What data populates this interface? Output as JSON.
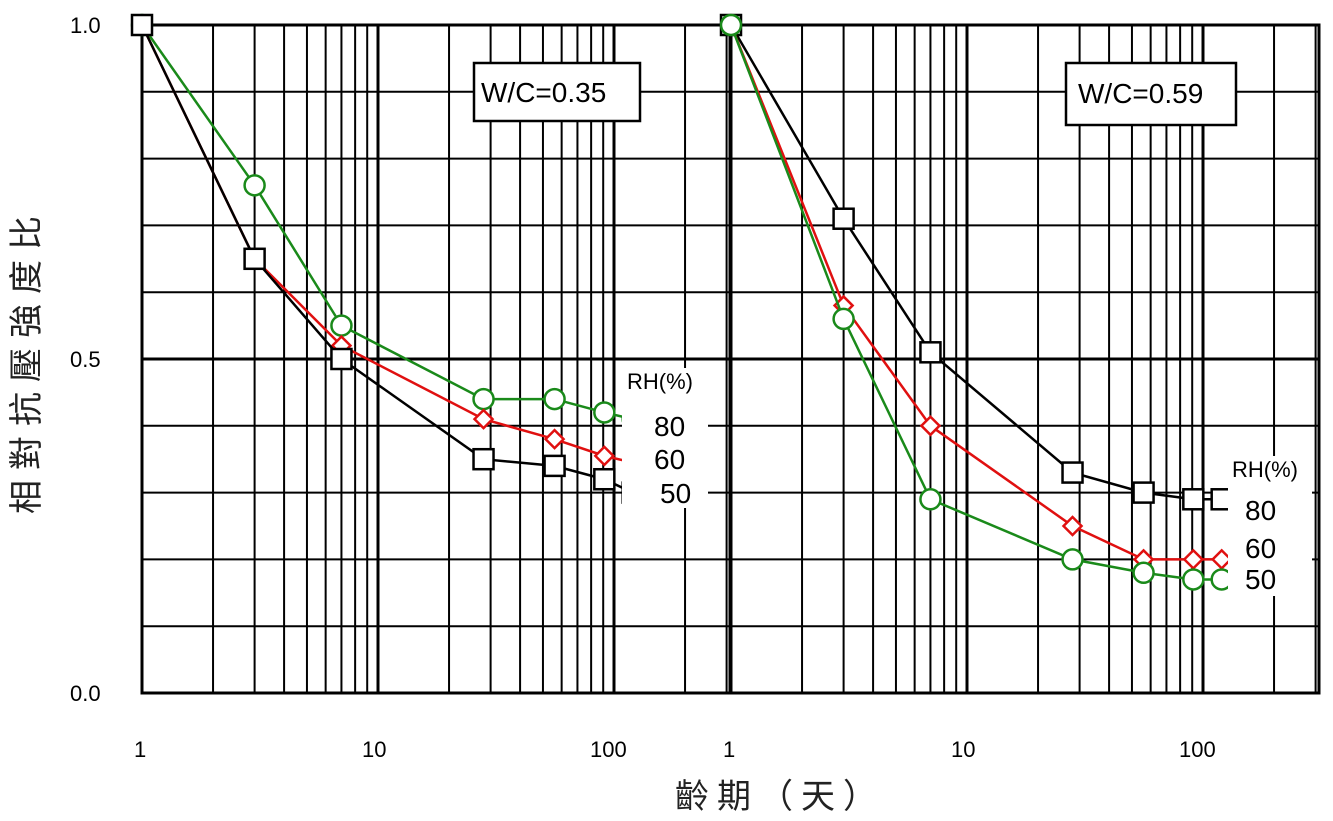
{
  "chart_data": [
    {
      "type": "line",
      "title": "W/C=0.35",
      "xlabel": "齡期（天）",
      "ylabel": "相對抗壓強度比",
      "x_scale": "log",
      "xlim": [
        1,
        300
      ],
      "ylim": [
        0,
        1.0
      ],
      "x_ticks": [
        "1",
        "10",
        "100"
      ],
      "y_ticks": [
        "0.0",
        "0.5",
        "1.0"
      ],
      "grid": true,
      "legend_title": "RH(%)",
      "series": [
        {
          "name": "80",
          "marker": "circle",
          "color": "#1a8a1a",
          "x": [
            1,
            3,
            7,
            28,
            56,
            91,
            120
          ],
          "y": [
            1.0,
            0.76,
            0.55,
            0.44,
            0.44,
            0.42,
            0.41
          ]
        },
        {
          "name": "60",
          "marker": "diamond",
          "color": "#e01010",
          "x": [
            1,
            3,
            7,
            28,
            56,
            91,
            120
          ],
          "y": [
            1.0,
            0.65,
            0.52,
            0.41,
            0.38,
            0.355,
            0.345
          ]
        },
        {
          "name": "50",
          "marker": "square",
          "color": "#000000",
          "x": [
            1,
            3,
            7,
            28,
            56,
            91,
            120
          ],
          "y": [
            1.0,
            0.65,
            0.5,
            0.35,
            0.34,
            0.32,
            0.3
          ]
        }
      ]
    },
    {
      "type": "line",
      "title": "W/C=0.59",
      "x_scale": "log",
      "xlim": [
        1,
        300
      ],
      "ylim": [
        0,
        1.0
      ],
      "x_ticks": [
        "1",
        "10",
        "100"
      ],
      "grid": true,
      "legend_title": "RH(%)",
      "series": [
        {
          "name": "80",
          "marker": "square",
          "color": "#000000",
          "x": [
            1,
            3,
            7,
            28,
            56,
            91,
            120
          ],
          "y": [
            1.0,
            0.71,
            0.51,
            0.33,
            0.3,
            0.29,
            0.29
          ]
        },
        {
          "name": "60",
          "marker": "diamond",
          "color": "#e01010",
          "x": [
            1,
            3,
            7,
            28,
            56,
            91,
            120
          ],
          "y": [
            1.0,
            0.58,
            0.4,
            0.25,
            0.2,
            0.2,
            0.2
          ]
        },
        {
          "name": "50",
          "marker": "circle",
          "color": "#1a8a1a",
          "x": [
            1,
            3,
            7,
            28,
            56,
            91,
            120
          ],
          "y": [
            1.0,
            0.56,
            0.29,
            0.2,
            0.18,
            0.17,
            0.17
          ]
        }
      ]
    }
  ]
}
